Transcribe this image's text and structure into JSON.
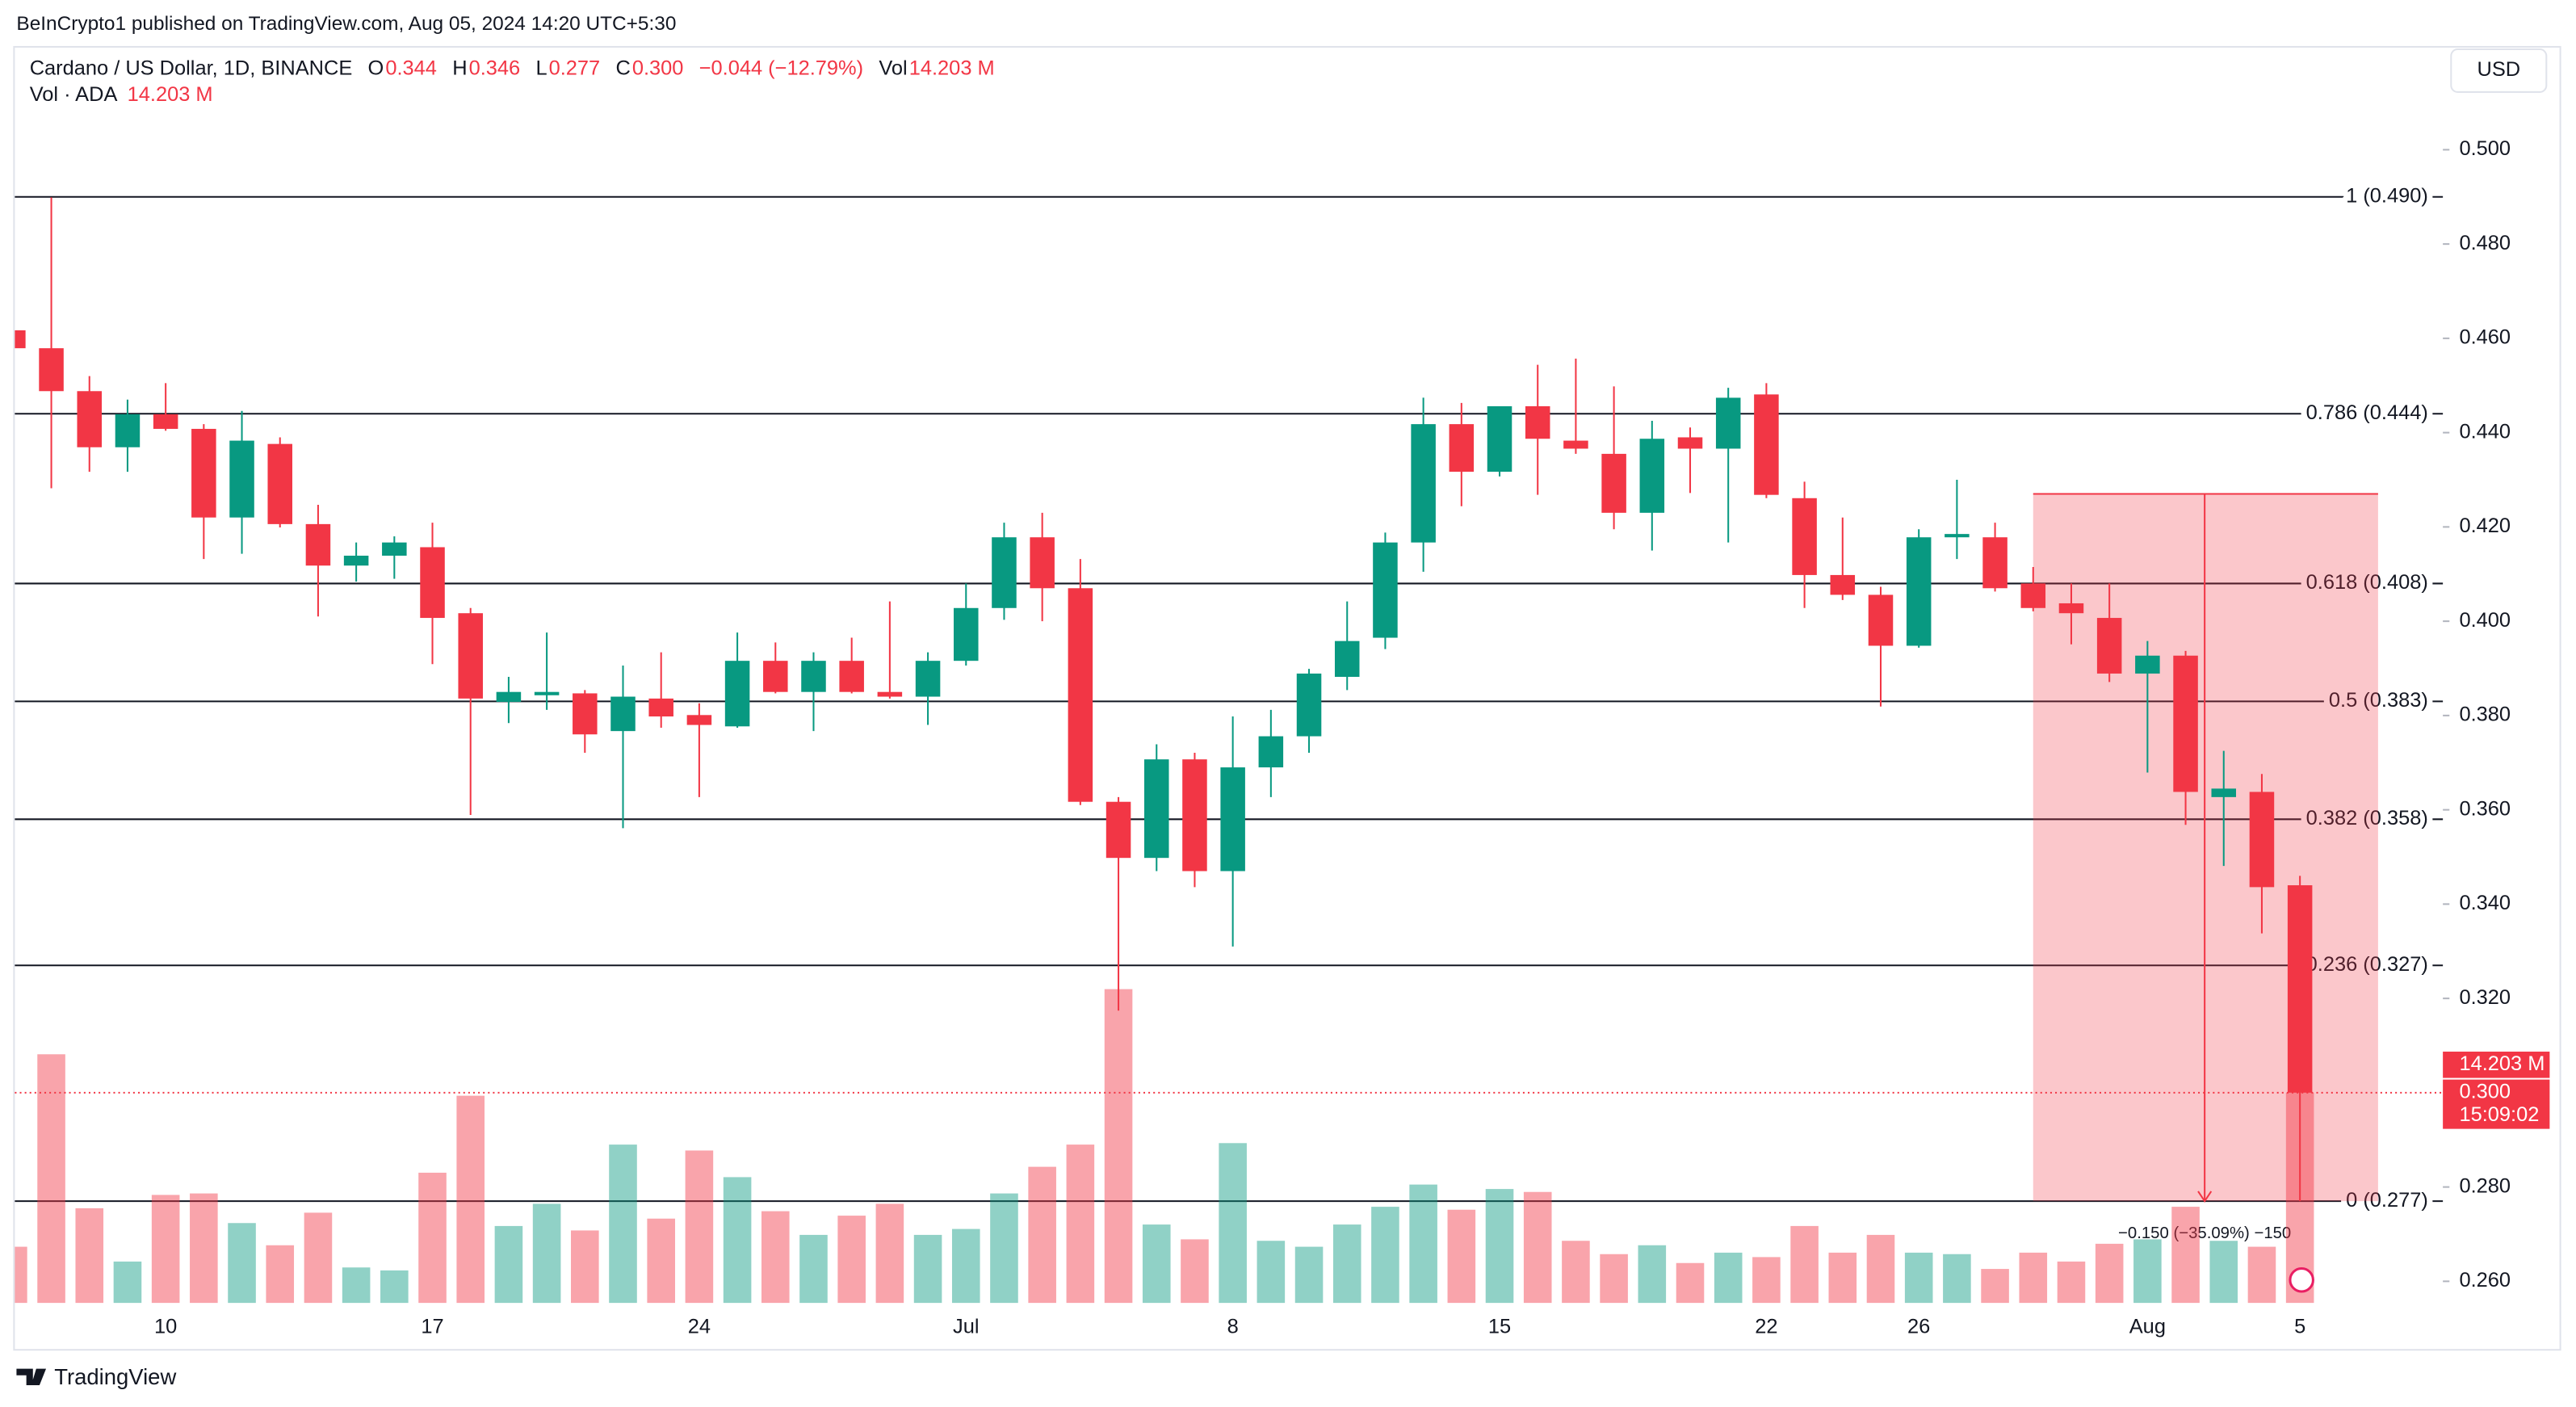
{
  "header": {
    "published": "BeInCrypto1 published on TradingView.com, Aug 05, 2024 14:20 UTC+5:30",
    "symbol": "Cardano / US Dollar, 1D, BINANCE",
    "legend": [
      {
        "k": "O",
        "v": "0.344"
      },
      {
        "k": "H",
        "v": "0.346"
      },
      {
        "k": "L",
        "v": "0.277"
      },
      {
        "k": "C",
        "v": "0.300"
      }
    ],
    "change": "−0.044 (−12.79%)",
    "vol_key": "Vol",
    "vol_value": "14.203 M",
    "vol_study": "Vol · ADA",
    "vol_study_value": "14.203 M",
    "currency": "USD",
    "brand": "TradingView"
  },
  "chart_data": {
    "type": "candlestick",
    "categories": [
      null,
      null,
      null,
      null,
      "10",
      null,
      null,
      null,
      null,
      null,
      null,
      "17",
      null,
      null,
      null,
      null,
      null,
      null,
      "24",
      null,
      null,
      null,
      null,
      null,
      null,
      "Jul",
      null,
      null,
      null,
      null,
      null,
      null,
      "8",
      null,
      null,
      null,
      null,
      null,
      null,
      "15",
      null,
      null,
      null,
      null,
      null,
      null,
      "22",
      null,
      null,
      null,
      "26",
      null,
      null,
      null,
      null,
      null,
      "Aug",
      null,
      null,
      null,
      "5"
    ],
    "open": [
      0.4617,
      0.4579,
      0.4488,
      0.4369,
      0.4439,
      0.4408,
      0.422,
      0.4376,
      0.4206,
      0.4118,
      0.4139,
      0.4157,
      0.4017,
      0.3829,
      0.3843,
      0.3847,
      0.3767,
      0.3836,
      0.3801,
      0.3777,
      0.3916,
      0.385,
      0.3916,
      0.385,
      0.384,
      0.3916,
      0.4028,
      0.4178,
      0.407,
      0.3617,
      0.3498,
      0.3707,
      0.347,
      0.369,
      0.3756,
      0.3882,
      0.3965,
      0.4167,
      0.4418,
      0.4317,
      0.4456,
      0.4383,
      0.4355,
      0.423,
      0.439,
      0.4366,
      0.4481,
      0.4261,
      0.4098,
      0.4056,
      0.3948,
      0.4178,
      0.4178,
      0.408,
      0.4038,
      0.4007,
      0.3889,
      0.3927,
      0.3627,
      0.3638,
      0.344
    ],
    "high": [
      0.462,
      0.4899,
      0.452,
      0.447,
      0.4505,
      0.4418,
      0.4446,
      0.439,
      0.4247,
      0.4167,
      0.418,
      0.4209,
      0.4028,
      0.3882,
      0.3976,
      0.3854,
      0.3906,
      0.3934,
      0.3826,
      0.3976,
      0.3955,
      0.3934,
      0.3965,
      0.4042,
      0.3934,
      0.408,
      0.4209,
      0.423,
      0.4132,
      0.3627,
      0.3739,
      0.3721,
      0.3798,
      0.3812,
      0.3899,
      0.4042,
      0.4188,
      0.4474,
      0.4463,
      0.4456,
      0.4544,
      0.4557,
      0.4498,
      0.4425,
      0.4411,
      0.4495,
      0.4505,
      0.4296,
      0.422,
      0.4073,
      0.4195,
      0.43,
      0.4209,
      0.4115,
      0.408,
      0.408,
      0.3958,
      0.3937,
      0.3725,
      0.3676,
      0.346
    ],
    "low": [
      0.457,
      0.4282,
      0.4317,
      0.4317,
      0.4404,
      0.4132,
      0.4143,
      0.4199,
      0.401,
      0.4084,
      0.409,
      0.3909,
      0.3589,
      0.3784,
      0.3812,
      0.3721,
      0.3561,
      0.3774,
      0.3627,
      0.3774,
      0.3847,
      0.3767,
      0.3847,
      0.3836,
      0.378,
      0.3906,
      0.4003,
      0.4,
      0.361,
      0.3174,
      0.347,
      0.3436,
      0.331,
      0.3627,
      0.3721,
      0.3854,
      0.3941,
      0.4105,
      0.4244,
      0.4307,
      0.4268,
      0.4355,
      0.4195,
      0.415,
      0.4272,
      0.4167,
      0.4261,
      0.4028,
      0.4045,
      0.3819,
      0.3944,
      0.4132,
      0.4063,
      0.4021,
      0.3951,
      0.3871,
      0.3679,
      0.3568,
      0.3481,
      0.3338,
      0.277
    ],
    "close": [
      0.4579,
      0.4488,
      0.4369,
      0.4439,
      0.4408,
      0.422,
      0.4383,
      0.4206,
      0.4118,
      0.4139,
      0.4167,
      0.4007,
      0.3836,
      0.385,
      0.385,
      0.376,
      0.384,
      0.3798,
      0.378,
      0.3916,
      0.385,
      0.3916,
      0.385,
      0.384,
      0.3916,
      0.4028,
      0.4178,
      0.407,
      0.3617,
      0.3498,
      0.3707,
      0.347,
      0.369,
      0.3756,
      0.3889,
      0.3958,
      0.4167,
      0.4418,
      0.4317,
      0.4456,
      0.4387,
      0.4366,
      0.423,
      0.4387,
      0.4366,
      0.4474,
      0.4268,
      0.4098,
      0.4056,
      0.3948,
      0.4178,
      0.4185,
      0.407,
      0.4028,
      0.4017,
      0.3889,
      0.3927,
      0.3638,
      0.3645,
      0.3436,
      0.3
    ],
    "volume": [
      3.8,
      16.8,
      6.4,
      2.8,
      7.3,
      7.4,
      5.4,
      3.9,
      6.1,
      2.4,
      2.2,
      8.8,
      14.0,
      5.2,
      6.7,
      4.9,
      10.7,
      5.7,
      10.3,
      8.5,
      6.2,
      4.6,
      5.9,
      6.7,
      4.6,
      5.0,
      7.4,
      9.2,
      10.7,
      21.2,
      5.3,
      4.3,
      10.8,
      4.2,
      3.8,
      5.3,
      6.5,
      8.0,
      6.3,
      7.7,
      7.5,
      4.2,
      3.3,
      3.9,
      2.7,
      3.4,
      3.1,
      5.2,
      3.4,
      4.6,
      3.4,
      3.3,
      2.3,
      3.4,
      2.8,
      4.0,
      4.3,
      6.5,
      4.2,
      3.8,
      14.203
    ],
    "up_color": "#089981",
    "down_color": "#f23645",
    "ylim": [
      0.2554,
      0.522
    ],
    "yticks": [
      {
        "value": 0.5,
        "label": "0.500"
      },
      {
        "value": 0.48,
        "label": "0.480"
      },
      {
        "value": 0.46,
        "label": "0.460"
      },
      {
        "value": 0.44,
        "label": "0.440"
      },
      {
        "value": 0.42,
        "label": "0.420"
      },
      {
        "value": 0.4,
        "label": "0.400"
      },
      {
        "value": 0.38,
        "label": "0.380"
      },
      {
        "value": 0.36,
        "label": "0.360"
      },
      {
        "value": 0.34,
        "label": "0.340"
      },
      {
        "value": 0.32,
        "label": "0.320"
      },
      {
        "value": 0.28,
        "label": "0.280"
      },
      {
        "value": 0.26,
        "label": "0.260"
      }
    ],
    "grid": false,
    "fib_levels": [
      {
        "value": 0.49,
        "label": "1 (0.490)"
      },
      {
        "value": 0.444,
        "label": "0.786 (0.444)"
      },
      {
        "value": 0.408,
        "label": "0.618 (0.408)"
      },
      {
        "value": 0.383,
        "label": "0.5 (0.383)"
      },
      {
        "value": 0.358,
        "label": "0.382 (0.358)"
      },
      {
        "value": 0.327,
        "label": "0.236 (0.327)"
      },
      {
        "value": 0.277,
        "label": "0 (0.277)"
      }
    ],
    "measure": {
      "from": 0.427,
      "to": 0.277,
      "label": "−0.150 (−35.09%) −150"
    },
    "price_tag": {
      "value": 0.3,
      "label": "0.300",
      "countdown": "15:09:02"
    },
    "volume_tag": "14.203 M"
  }
}
